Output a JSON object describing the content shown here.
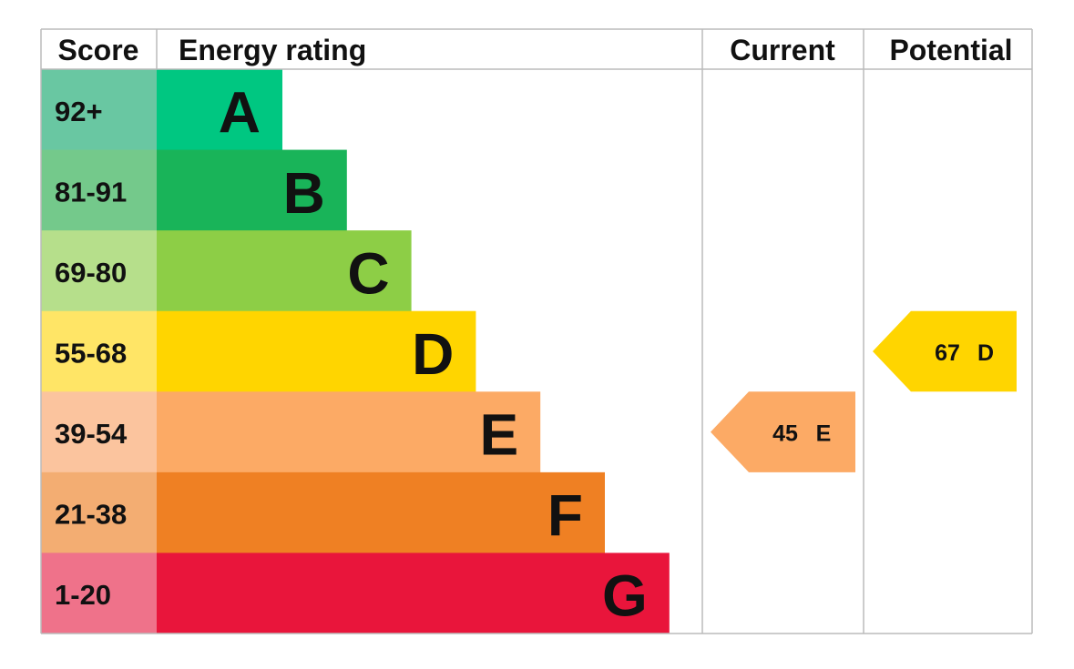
{
  "header": {
    "score": "Score",
    "rating": "Energy rating",
    "current": "Current",
    "potential": "Potential"
  },
  "bands": [
    {
      "score": "92+",
      "letter": "A",
      "color": "#00c781",
      "score_color": "#69c7a2"
    },
    {
      "score": "81-91",
      "letter": "B",
      "color": "#19b459",
      "score_color": "#74c98b"
    },
    {
      "score": "69-80",
      "letter": "C",
      "color": "#8dce46",
      "score_color": "#b6df8b"
    },
    {
      "score": "55-68",
      "letter": "D",
      "color": "#ffd500",
      "score_color": "#ffe566"
    },
    {
      "score": "39-54",
      "letter": "E",
      "color": "#fcaa65",
      "score_color": "#fbc49e"
    },
    {
      "score": "21-38",
      "letter": "F",
      "color": "#ef8023",
      "score_color": "#f3ad72"
    },
    {
      "score": "1-20",
      "letter": "G",
      "color": "#e9153b",
      "score_color": "#ef728a"
    }
  ],
  "current": {
    "value": "45",
    "letter": "E"
  },
  "potential": {
    "value": "67",
    "letter": "D"
  }
}
